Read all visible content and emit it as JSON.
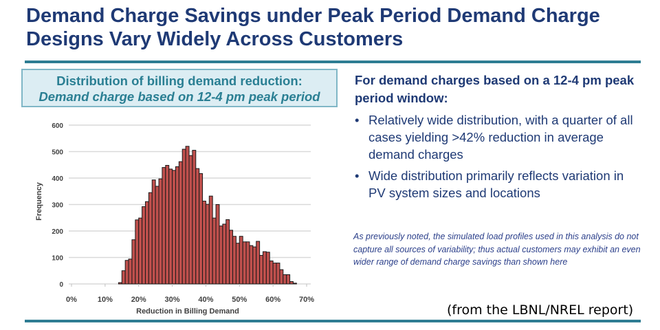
{
  "title": "Demand Charge Savings under Peak Period Demand Charge Designs Vary Widely Across Customers",
  "chart_box": {
    "line1": "Distribution of billing demand reduction:",
    "line2": "Demand charge based on 12-4 pm peak period"
  },
  "right_panel": {
    "heading": "For demand charges based on a 12-4 pm peak period window:",
    "bullet_glyph": "•",
    "bullets": [
      "Relatively wide distribution, with a quarter of all cases yielding >42% reduction in average demand charges",
      "Wide distribution primarily reflects variation in PV system sizes and locations"
    ],
    "note": "As previously noted, the simulated load profiles used in this analysis do not capture all sources of variability; thus actual customers may exhibit an even wider range of demand charge savings than shown here"
  },
  "source": "(from the LBNL/NREL report)",
  "colors": {
    "title": "#1f3a75",
    "accent": "#2e7d93",
    "bar_fill": "#c0504d",
    "bar_edge": "#1a1a1a"
  },
  "chart_data": {
    "type": "bar",
    "subtype": "histogram",
    "xlabel": "Reduction in Billing Demand",
    "ylabel": "Frequency",
    "xlim": [
      0,
      70
    ],
    "ylim": [
      0,
      600
    ],
    "x_unit": "%",
    "bin_width": 1,
    "xticks": [
      "0%",
      "10%",
      "20%",
      "30%",
      "40%",
      "50%",
      "60%",
      "70%"
    ],
    "yticks": [
      "0",
      "100",
      "200",
      "300",
      "400",
      "500",
      "600"
    ],
    "grid": "horizontal",
    "bins_start": [
      14,
      15,
      16,
      17,
      18,
      19,
      20,
      21,
      22,
      23,
      24,
      25,
      26,
      27,
      28,
      29,
      30,
      31,
      32,
      33,
      34,
      35,
      36,
      37,
      38,
      39,
      40,
      41,
      42,
      43,
      44,
      45,
      46,
      47,
      48,
      49,
      50,
      51,
      52,
      53,
      54,
      55,
      56,
      57,
      58,
      59,
      60,
      61,
      62,
      63,
      64,
      65,
      66
    ],
    "values": [
      5,
      50,
      89,
      94,
      167,
      242,
      249,
      292,
      311,
      345,
      393,
      369,
      397,
      440,
      448,
      434,
      429,
      443,
      462,
      509,
      520,
      485,
      505,
      436,
      417,
      313,
      301,
      332,
      249,
      300,
      219,
      226,
      243,
      203,
      180,
      154,
      180,
      159,
      159,
      145,
      140,
      161,
      108,
      122,
      120,
      87,
      79,
      79,
      54,
      35,
      35,
      9,
      3
    ]
  }
}
